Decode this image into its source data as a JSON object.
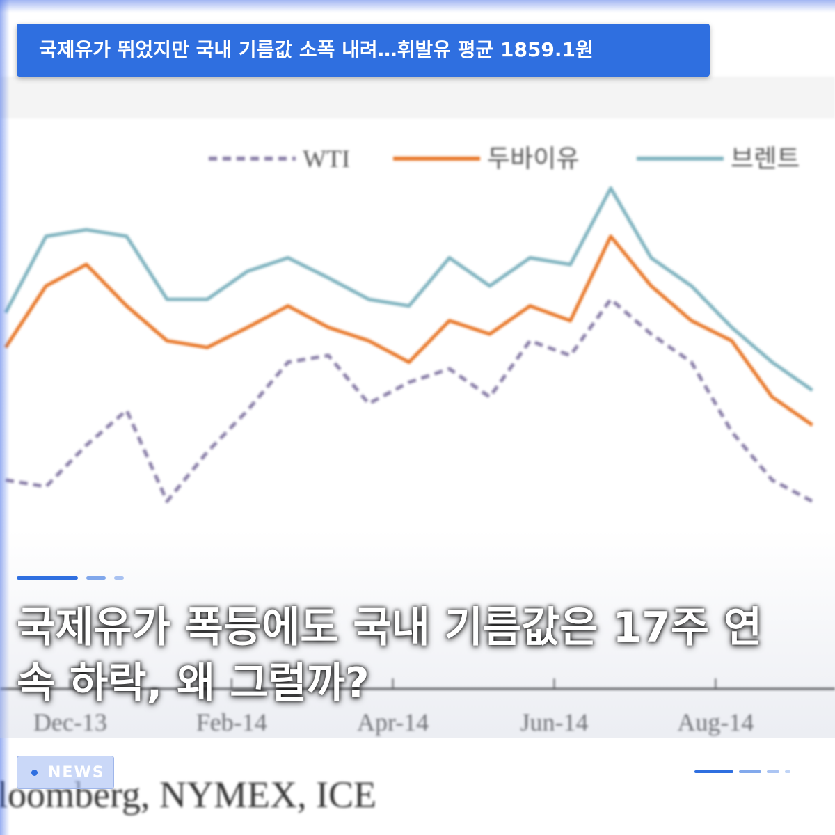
{
  "banner": "국제유가 뛰었지만 국내 기름값 소폭 내려…휘발유 평균 1859.1원",
  "headline": "국제유가 폭등에도 국내 기름값은 17주 연속 하락, 왜 그럴까?",
  "badge": "NEWS",
  "chart_data": {
    "type": "line",
    "source": "Bloomberg, NYMEX, ICE",
    "x": [
      -0.8,
      -0.3,
      0.2,
      0.7,
      1.2,
      1.7,
      2.2,
      2.7,
      3.2,
      3.7,
      4.2,
      4.7,
      5.2,
      5.7,
      6.2,
      6.7,
      7.2,
      7.7,
      8.2,
      8.7,
      9.2
    ],
    "xlim": [
      -0.87,
      9.48
    ],
    "xticks": [
      {
        "value": 0,
        "label": "Dec-13"
      },
      {
        "value": 2,
        "label": "Feb-14"
      },
      {
        "value": 4,
        "label": "Apr-14"
      },
      {
        "value": 6,
        "label": "Jun-14"
      },
      {
        "value": 8,
        "label": "Aug-14"
      }
    ],
    "ylim": [
      90,
      120
    ],
    "series": [
      {
        "name": "WTI",
        "color": "#8a7fa8",
        "dashed": true,
        "values": [
          93.6,
          93.1,
          96.2,
          98.8,
          92.0,
          95.7,
          98.8,
          102.4,
          102.9,
          99.3,
          100.9,
          101.9,
          99.8,
          104.0,
          102.9,
          107.1,
          104.5,
          102.4,
          97.2,
          93.6,
          92.0
        ]
      },
      {
        "name": "두바이유",
        "color": "#e8782a",
        "dashed": false,
        "values": [
          103.5,
          108.1,
          109.7,
          106.6,
          104.0,
          103.5,
          105.0,
          106.6,
          105.0,
          104.0,
          102.4,
          105.5,
          104.5,
          106.6,
          105.5,
          111.8,
          108.1,
          105.5,
          104.0,
          99.8,
          97.7
        ]
      },
      {
        "name": "브렌트",
        "color": "#7fb3bf",
        "dashed": false,
        "values": [
          106.1,
          111.8,
          112.3,
          111.8,
          107.1,
          107.1,
          109.2,
          110.2,
          108.7,
          107.1,
          106.6,
          110.2,
          108.1,
          110.2,
          109.7,
          115.4,
          110.2,
          108.1,
          105.0,
          102.4,
          100.3
        ]
      }
    ]
  }
}
